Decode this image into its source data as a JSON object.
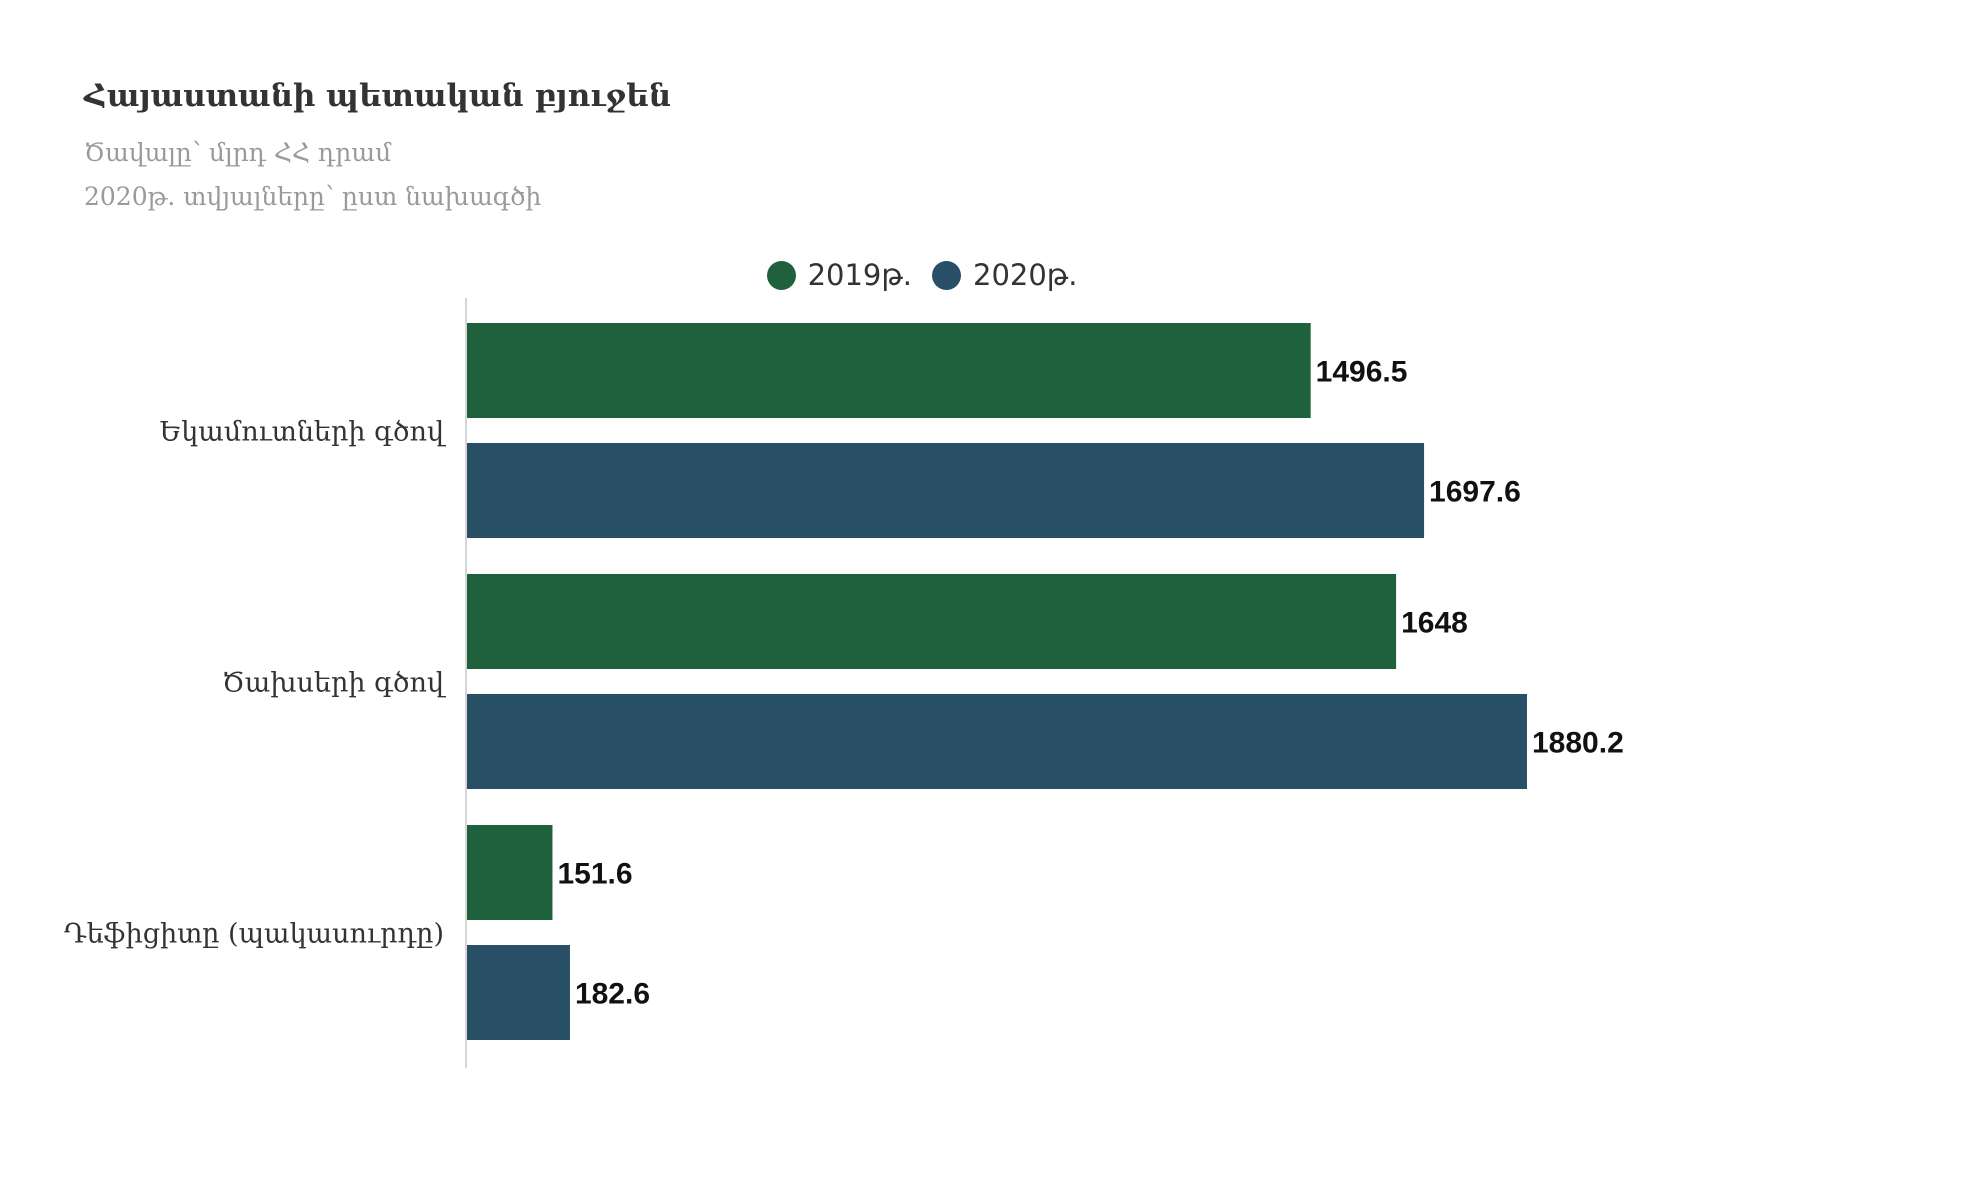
{
  "chart_data": {
    "type": "bar",
    "orientation": "horizontal",
    "title": "Հայաստանի պետական բյուջեն",
    "subtitle": [
      "Ծավալը՝ մլրդ ՀՀ դրամ",
      "2020թ. տվյալները՝ ըստ նախագծի"
    ],
    "categories": [
      "Եկամուտների գծով",
      "Ծախսերի գծով",
      "Դեֆիցիտը (պակասուրդը)"
    ],
    "series": [
      {
        "name": "2019թ.",
        "values": [
          1496.5,
          1648,
          151.6
        ],
        "color": "#1e613c"
      },
      {
        "name": "2020թ.",
        "values": [
          1697.6,
          1880.2,
          182.6
        ],
        "color": "#284f66"
      }
    ],
    "value_labels": [
      [
        "1496.5",
        "1648",
        "151.6"
      ],
      [
        "1697.6",
        "1880.2",
        "182.6"
      ]
    ],
    "xlim": [
      0,
      2000
    ],
    "legend_position": "top-center",
    "grid": false
  }
}
